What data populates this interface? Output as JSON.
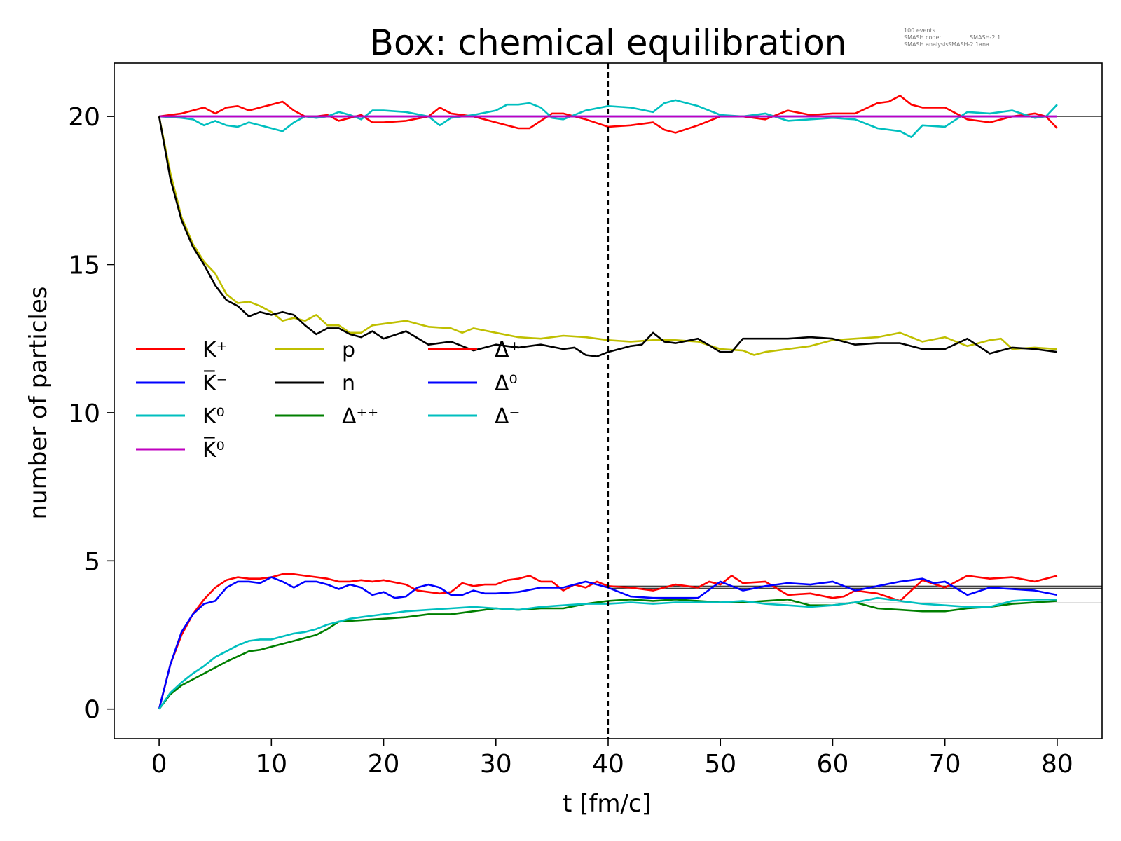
{
  "chart_data": {
    "type": "line",
    "title": "Box: chemical equilibration",
    "xlabel": "t [fm/c]",
    "ylabel": "number of particles",
    "xlim": [
      -4,
      84
    ],
    "ylim": [
      -1,
      21.8
    ],
    "xticks": [
      0,
      10,
      20,
      30,
      40,
      50,
      60,
      70,
      80
    ],
    "yticks": [
      0,
      5,
      10,
      15,
      20
    ],
    "info": {
      "events": "100 events",
      "code_label": "SMASH code:",
      "code_value": "SMASH-2.1",
      "analysis_label": "SMASH analysis:",
      "analysis_value": "SMASH-2.1ana"
    },
    "vline_x": 40,
    "equilibrium_levels": [
      20.0,
      12.35,
      4.15,
      4.08,
      3.58
    ],
    "legend": [
      [
        "K⁺",
        "K̅⁻",
        "K⁰",
        "K̅⁰"
      ],
      [
        "p",
        "n",
        "Δ⁺⁺"
      ],
      [
        "Δ⁺",
        "Δ⁰",
        "Δ⁻"
      ]
    ],
    "series": [
      {
        "name": "K⁺",
        "color": "#ff0000",
        "x": [
          0,
          2,
          4,
          5,
          6,
          7,
          8,
          9,
          10,
          11,
          12,
          13,
          14,
          15,
          16,
          17,
          18,
          19,
          20,
          22,
          24,
          25,
          26,
          28,
          30,
          32,
          33,
          35,
          36,
          38,
          40,
          42,
          44,
          45,
          46,
          48,
          50,
          52,
          54,
          56,
          58,
          60,
          62,
          64,
          65,
          66,
          67,
          68,
          70,
          72,
          74,
          76,
          78,
          79,
          80
        ],
        "values": [
          20.0,
          20.1,
          20.3,
          20.1,
          20.3,
          20.35,
          20.2,
          20.3,
          20.4,
          20.5,
          20.2,
          20.0,
          20.0,
          20.05,
          19.85,
          19.95,
          20.05,
          19.8,
          19.8,
          19.85,
          20.0,
          20.3,
          20.1,
          20.0,
          19.8,
          19.6,
          19.6,
          20.1,
          20.1,
          19.9,
          19.65,
          19.7,
          19.8,
          19.55,
          19.45,
          19.7,
          20.0,
          20.0,
          19.9,
          20.2,
          20.05,
          20.1,
          20.1,
          20.45,
          20.5,
          20.7,
          20.4,
          20.3,
          20.3,
          19.9,
          19.8,
          20.0,
          20.1,
          20.0,
          19.6
        ]
      },
      {
        "name": "K̅⁻",
        "color": "#0000ff",
        "x": [
          0,
          80
        ],
        "values": [
          20.0,
          20.0
        ]
      },
      {
        "name": "K⁰",
        "color": "#00bfbf",
        "x": [
          0,
          2,
          3,
          4,
          5,
          6,
          7,
          8,
          9,
          10,
          11,
          12,
          13,
          14,
          15,
          16,
          17,
          18,
          19,
          20,
          22,
          24,
          25,
          26,
          28,
          30,
          31,
          32,
          33,
          34,
          35,
          36,
          38,
          40,
          42,
          44,
          45,
          46,
          48,
          50,
          52,
          54,
          56,
          58,
          60,
          62,
          64,
          66,
          67,
          68,
          70,
          72,
          74,
          76,
          78,
          79,
          80
        ],
        "values": [
          20.0,
          19.95,
          19.9,
          19.7,
          19.85,
          19.7,
          19.65,
          19.8,
          19.7,
          19.6,
          19.5,
          19.8,
          20.0,
          19.95,
          20.0,
          20.15,
          20.05,
          19.9,
          20.2,
          20.2,
          20.15,
          20.0,
          19.7,
          19.95,
          20.05,
          20.2,
          20.4,
          20.4,
          20.45,
          20.3,
          19.95,
          19.9,
          20.2,
          20.35,
          20.3,
          20.15,
          20.45,
          20.55,
          20.35,
          20.05,
          20.0,
          20.1,
          19.85,
          19.9,
          19.95,
          19.9,
          19.6,
          19.5,
          19.3,
          19.7,
          19.65,
          20.15,
          20.1,
          20.2,
          19.95,
          20.0,
          20.4
        ]
      },
      {
        "name": "K̅⁰",
        "color": "#bf00bf",
        "x": [
          0,
          80
        ],
        "values": [
          20.0,
          20.0
        ]
      },
      {
        "name": "p",
        "color": "#bfbf00",
        "x": [
          0,
          1,
          2,
          3,
          4,
          5,
          6,
          7,
          8,
          9,
          10,
          11,
          12,
          13,
          14,
          15,
          16,
          17,
          18,
          19,
          20,
          22,
          24,
          26,
          27,
          28,
          30,
          32,
          34,
          36,
          38,
          40,
          42,
          44,
          46,
          48,
          50,
          52,
          53,
          54,
          56,
          58,
          60,
          62,
          64,
          66,
          68,
          70,
          72,
          74,
          75,
          76,
          78,
          80
        ],
        "values": [
          20.0,
          18.1,
          16.6,
          15.7,
          15.1,
          14.7,
          14.0,
          13.7,
          13.75,
          13.6,
          13.4,
          13.1,
          13.2,
          13.1,
          13.3,
          12.95,
          12.95,
          12.7,
          12.7,
          12.95,
          13.0,
          13.1,
          12.9,
          12.85,
          12.7,
          12.85,
          12.7,
          12.55,
          12.5,
          12.6,
          12.55,
          12.45,
          12.4,
          12.45,
          12.45,
          12.4,
          12.15,
          12.1,
          11.95,
          12.05,
          12.15,
          12.25,
          12.45,
          12.5,
          12.55,
          12.7,
          12.4,
          12.55,
          12.25,
          12.45,
          12.5,
          12.15,
          12.2,
          12.15
        ]
      },
      {
        "name": "n",
        "color": "#000000",
        "x": [
          0,
          1,
          2,
          3,
          4,
          5,
          6,
          7,
          8,
          9,
          10,
          11,
          12,
          13,
          14,
          15,
          16,
          17,
          18,
          19,
          20,
          22,
          24,
          26,
          28,
          30,
          32,
          34,
          36,
          37,
          38,
          39,
          40,
          42,
          43,
          44,
          45,
          46,
          48,
          50,
          51,
          52,
          54,
          56,
          58,
          60,
          62,
          64,
          66,
          68,
          70,
          72,
          74,
          76,
          78,
          80
        ],
        "values": [
          20.0,
          17.9,
          16.5,
          15.6,
          15.0,
          14.3,
          13.8,
          13.6,
          13.25,
          13.4,
          13.3,
          13.4,
          13.3,
          12.95,
          12.65,
          12.85,
          12.85,
          12.65,
          12.55,
          12.75,
          12.5,
          12.75,
          12.3,
          12.4,
          12.1,
          12.3,
          12.2,
          12.3,
          12.15,
          12.2,
          11.95,
          11.9,
          12.05,
          12.25,
          12.3,
          12.7,
          12.4,
          12.35,
          12.5,
          12.05,
          12.05,
          12.5,
          12.5,
          12.5,
          12.55,
          12.5,
          12.3,
          12.35,
          12.35,
          12.15,
          12.15,
          12.5,
          12.0,
          12.2,
          12.15,
          12.05
        ]
      },
      {
        "name": "Δ⁺⁺",
        "color": "#007f00",
        "x": [
          0,
          1,
          2,
          4,
          6,
          8,
          9,
          10,
          12,
          14,
          15,
          16,
          18,
          20,
          22,
          24,
          26,
          28,
          30,
          32,
          34,
          36,
          38,
          40,
          42,
          44,
          46,
          48,
          50,
          52,
          54,
          56,
          58,
          60,
          62,
          64,
          66,
          68,
          70,
          72,
          74,
          76,
          78,
          80
        ],
        "values": [
          0.0,
          0.5,
          0.8,
          1.2,
          1.6,
          1.95,
          2.0,
          2.1,
          2.3,
          2.5,
          2.7,
          2.95,
          3.0,
          3.05,
          3.1,
          3.2,
          3.2,
          3.3,
          3.4,
          3.35,
          3.4,
          3.4,
          3.55,
          3.65,
          3.7,
          3.65,
          3.7,
          3.65,
          3.6,
          3.6,
          3.65,
          3.7,
          3.5,
          3.5,
          3.6,
          3.4,
          3.35,
          3.3,
          3.3,
          3.4,
          3.45,
          3.55,
          3.6,
          3.65
        ]
      },
      {
        "name": "Δ⁺",
        "color": "#ff0000",
        "x": [
          0,
          1,
          2,
          3,
          4,
          5,
          6,
          7,
          8,
          9,
          10,
          11,
          12,
          13,
          14,
          15,
          16,
          17,
          18,
          19,
          20,
          22,
          23,
          24,
          25,
          26,
          27,
          28,
          29,
          30,
          31,
          32,
          33,
          34,
          35,
          36,
          37,
          38,
          39,
          40,
          42,
          44,
          46,
          48,
          49,
          50,
          51,
          52,
          54,
          56,
          58,
          60,
          61,
          62,
          64,
          66,
          68,
          70,
          72,
          74,
          76,
          78,
          80
        ],
        "values": [
          0.0,
          1.5,
          2.5,
          3.2,
          3.7,
          4.1,
          4.35,
          4.45,
          4.4,
          4.4,
          4.45,
          4.55,
          4.55,
          4.5,
          4.45,
          4.4,
          4.3,
          4.3,
          4.35,
          4.3,
          4.35,
          4.2,
          4.0,
          3.95,
          3.9,
          3.95,
          4.25,
          4.15,
          4.2,
          4.2,
          4.35,
          4.4,
          4.5,
          4.3,
          4.3,
          4.0,
          4.2,
          4.1,
          4.3,
          4.15,
          4.1,
          4.0,
          4.2,
          4.1,
          4.3,
          4.2,
          4.5,
          4.25,
          4.3,
          3.85,
          3.9,
          3.75,
          3.8,
          4.0,
          3.9,
          3.65,
          4.35,
          4.1,
          4.5,
          4.4,
          4.45,
          4.3,
          4.5
        ]
      },
      {
        "name": "Δ⁰",
        "color": "#0000ff",
        "x": [
          0,
          1,
          2,
          3,
          4,
          5,
          6,
          7,
          8,
          9,
          10,
          11,
          12,
          13,
          14,
          15,
          16,
          17,
          18,
          19,
          20,
          21,
          22,
          23,
          24,
          25,
          26,
          27,
          28,
          29,
          30,
          32,
          34,
          36,
          38,
          40,
          42,
          44,
          46,
          48,
          50,
          52,
          54,
          56,
          58,
          60,
          62,
          64,
          66,
          68,
          69,
          70,
          72,
          74,
          76,
          78,
          80
        ],
        "values": [
          0.0,
          1.5,
          2.6,
          3.2,
          3.55,
          3.65,
          4.1,
          4.3,
          4.3,
          4.25,
          4.45,
          4.3,
          4.1,
          4.3,
          4.3,
          4.2,
          4.05,
          4.2,
          4.1,
          3.85,
          3.95,
          3.75,
          3.8,
          4.1,
          4.2,
          4.1,
          3.85,
          3.85,
          4.0,
          3.9,
          3.9,
          3.95,
          4.1,
          4.1,
          4.3,
          4.1,
          3.8,
          3.75,
          3.75,
          3.75,
          4.3,
          4.0,
          4.15,
          4.25,
          4.2,
          4.3,
          4.0,
          4.15,
          4.3,
          4.4,
          4.25,
          4.3,
          3.85,
          4.1,
          4.05,
          4.0,
          3.85
        ]
      },
      {
        "name": "Δ⁻",
        "color": "#00bfbf",
        "x": [
          0,
          1,
          2,
          3,
          4,
          5,
          6,
          7,
          8,
          9,
          10,
          11,
          12,
          13,
          14,
          15,
          16,
          17,
          18,
          19,
          20,
          22,
          24,
          26,
          28,
          30,
          32,
          34,
          36,
          38,
          40,
          42,
          44,
          46,
          48,
          50,
          52,
          54,
          56,
          58,
          60,
          62,
          64,
          66,
          68,
          70,
          72,
          74,
          76,
          78,
          80
        ],
        "values": [
          0.0,
          0.55,
          0.9,
          1.2,
          1.45,
          1.75,
          1.95,
          2.15,
          2.3,
          2.35,
          2.35,
          2.45,
          2.55,
          2.6,
          2.7,
          2.85,
          2.95,
          3.05,
          3.1,
          3.15,
          3.2,
          3.3,
          3.35,
          3.4,
          3.45,
          3.4,
          3.35,
          3.45,
          3.5,
          3.55,
          3.55,
          3.6,
          3.55,
          3.6,
          3.6,
          3.6,
          3.65,
          3.55,
          3.5,
          3.45,
          3.5,
          3.6,
          3.75,
          3.65,
          3.55,
          3.5,
          3.45,
          3.45,
          3.65,
          3.7,
          3.7
        ]
      }
    ]
  }
}
